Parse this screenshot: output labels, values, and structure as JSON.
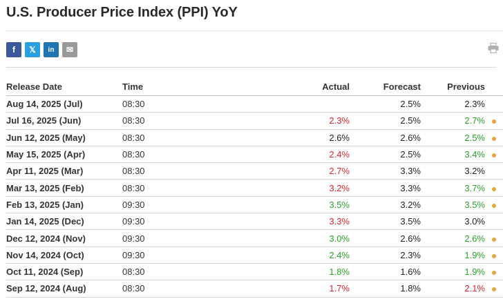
{
  "title": "U.S. Producer Price Index (PPI) YoY",
  "share": [
    {
      "name": "facebook",
      "glyph": "f",
      "color": "#3b5998"
    },
    {
      "name": "x-twitter",
      "glyph": "𝕏",
      "color": "#2aa0e0"
    },
    {
      "name": "linkedin",
      "glyph": "in",
      "color": "#1f74b2"
    },
    {
      "name": "email",
      "glyph": "✉",
      "color": "#9a9a9a"
    }
  ],
  "columns": [
    "Release Date",
    "Time",
    "Actual",
    "Forecast",
    "Previous"
  ],
  "colors": {
    "up": "#2c9f2c",
    "down": "#d9262e",
    "neutral": "#222222",
    "revision_dot": "#e3a73a"
  },
  "rows": [
    {
      "date": "Aug 14, 2025 (Jul)",
      "time": "08:30",
      "actual": "",
      "actual_color": "black",
      "forecast": "2.5%",
      "previous": "2.3%",
      "previous_color": "black",
      "revised": false
    },
    {
      "date": "Jul 16, 2025 (Jun)",
      "time": "08:30",
      "actual": "2.3%",
      "actual_color": "red",
      "forecast": "2.5%",
      "previous": "2.7%",
      "previous_color": "green",
      "revised": true
    },
    {
      "date": "Jun 12, 2025 (May)",
      "time": "08:30",
      "actual": "2.6%",
      "actual_color": "black",
      "forecast": "2.6%",
      "previous": "2.5%",
      "previous_color": "green",
      "revised": true
    },
    {
      "date": "May 15, 2025 (Apr)",
      "time": "08:30",
      "actual": "2.4%",
      "actual_color": "red",
      "forecast": "2.5%",
      "previous": "3.4%",
      "previous_color": "green",
      "revised": true
    },
    {
      "date": "Apr 11, 2025 (Mar)",
      "time": "08:30",
      "actual": "2.7%",
      "actual_color": "red",
      "forecast": "3.3%",
      "previous": "3.2%",
      "previous_color": "black",
      "revised": false
    },
    {
      "date": "Mar 13, 2025 (Feb)",
      "time": "08:30",
      "actual": "3.2%",
      "actual_color": "red",
      "forecast": "3.3%",
      "previous": "3.7%",
      "previous_color": "green",
      "revised": true
    },
    {
      "date": "Feb 13, 2025 (Jan)",
      "time": "09:30",
      "actual": "3.5%",
      "actual_color": "green",
      "forecast": "3.2%",
      "previous": "3.5%",
      "previous_color": "green",
      "revised": true
    },
    {
      "date": "Jan 14, 2025 (Dec)",
      "time": "09:30",
      "actual": "3.3%",
      "actual_color": "red",
      "forecast": "3.5%",
      "previous": "3.0%",
      "previous_color": "black",
      "revised": false
    },
    {
      "date": "Dec 12, 2024 (Nov)",
      "time": "09:30",
      "actual": "3.0%",
      "actual_color": "green",
      "forecast": "2.6%",
      "previous": "2.6%",
      "previous_color": "green",
      "revised": true
    },
    {
      "date": "Nov 14, 2024 (Oct)",
      "time": "09:30",
      "actual": "2.4%",
      "actual_color": "green",
      "forecast": "2.3%",
      "previous": "1.9%",
      "previous_color": "green",
      "revised": true
    },
    {
      "date": "Oct 11, 2024 (Sep)",
      "time": "08:30",
      "actual": "1.8%",
      "actual_color": "green",
      "forecast": "1.6%",
      "previous": "1.9%",
      "previous_color": "green",
      "revised": true
    },
    {
      "date": "Sep 12, 2024 (Aug)",
      "time": "08:30",
      "actual": "1.7%",
      "actual_color": "red",
      "forecast": "1.8%",
      "previous": "2.1%",
      "previous_color": "red",
      "revised": true
    }
  ]
}
